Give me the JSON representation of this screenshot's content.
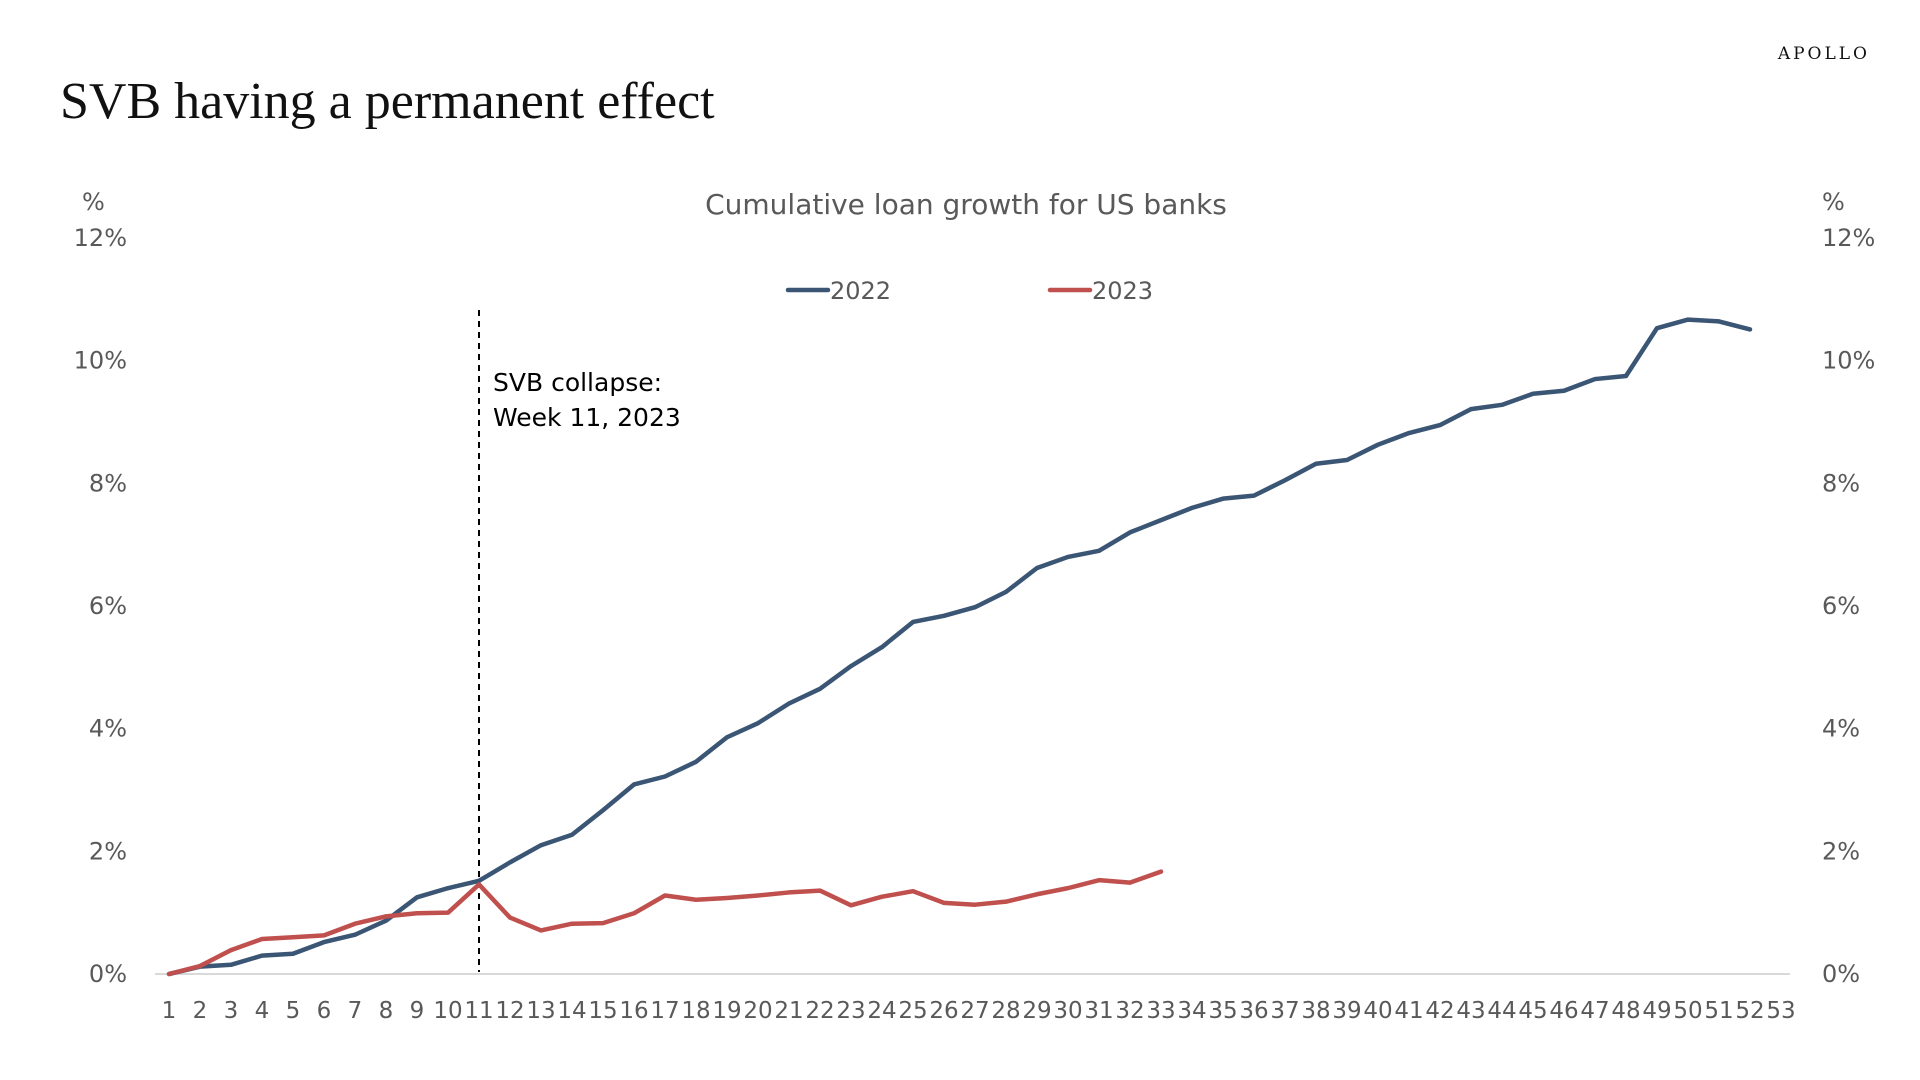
{
  "brand": "APOLLO",
  "page_title": "SVB having a permanent effect",
  "chart_data": {
    "type": "line",
    "title": "Cumulative loan growth for US banks",
    "ylabel_left": "%",
    "ylabel_right": "%",
    "xlabel": "",
    "x": [
      1,
      2,
      3,
      4,
      5,
      6,
      7,
      8,
      9,
      10,
      11,
      12,
      13,
      14,
      15,
      16,
      17,
      18,
      19,
      20,
      21,
      22,
      23,
      24,
      25,
      26,
      27,
      28,
      29,
      30,
      31,
      32,
      33,
      34,
      35,
      36,
      37,
      38,
      39,
      40,
      41,
      42,
      43,
      44,
      45,
      46,
      47,
      48,
      49,
      50,
      51,
      52,
      53
    ],
    "xlim": [
      1,
      53
    ],
    "ylim": [
      0,
      12
    ],
    "y_ticks": [
      "0%",
      "2%",
      "4%",
      "6%",
      "8%",
      "10%",
      "12%"
    ],
    "grid": false,
    "legend_position": "top-center",
    "series": [
      {
        "name": "2022",
        "color": "#3b5675",
        "x": [
          1,
          2,
          3,
          4,
          5,
          6,
          7,
          8,
          9,
          10,
          11,
          12,
          13,
          14,
          15,
          16,
          17,
          18,
          19,
          20,
          21,
          22,
          23,
          24,
          25,
          26,
          27,
          28,
          29,
          30,
          31,
          32,
          33,
          34,
          35,
          36,
          37,
          38,
          39,
          40,
          41,
          42,
          43,
          44,
          45,
          46,
          47,
          48,
          49,
          50,
          51,
          52
        ],
        "values": [
          0.0,
          0.12,
          0.15,
          0.3,
          0.33,
          0.52,
          0.64,
          0.87,
          1.25,
          1.4,
          1.52,
          1.82,
          2.1,
          2.27,
          2.67,
          3.09,
          3.22,
          3.46,
          3.86,
          4.09,
          4.41,
          4.65,
          5.02,
          5.33,
          5.74,
          5.84,
          5.98,
          6.23,
          6.62,
          6.8,
          6.9,
          7.2,
          7.4,
          7.6,
          7.75,
          7.8,
          8.05,
          8.32,
          8.38,
          8.63,
          8.82,
          8.95,
          9.21,
          9.28,
          9.46,
          9.51,
          9.7,
          9.75,
          10.53,
          10.67,
          10.64,
          10.51
        ]
      },
      {
        "name": "2023",
        "color": "#c0504d",
        "x": [
          1,
          2,
          3,
          4,
          5,
          6,
          7,
          8,
          9,
          10,
          11,
          12,
          13,
          14,
          15,
          16,
          17,
          18,
          19,
          20,
          21,
          22,
          23,
          24,
          25,
          26,
          27,
          28,
          29,
          30,
          31,
          32,
          33
        ],
        "values": [
          0.0,
          0.13,
          0.39,
          0.57,
          0.6,
          0.63,
          0.82,
          0.94,
          0.99,
          1.0,
          1.46,
          0.92,
          0.71,
          0.82,
          0.83,
          0.99,
          1.28,
          1.21,
          1.24,
          1.28,
          1.33,
          1.36,
          1.12,
          1.26,
          1.35,
          1.16,
          1.13,
          1.18,
          1.3,
          1.4,
          1.53,
          1.49,
          1.67
        ]
      }
    ],
    "annotation": {
      "x": 11,
      "line1": "SVB collapse:",
      "line2": "Week 11, 2023"
    }
  }
}
